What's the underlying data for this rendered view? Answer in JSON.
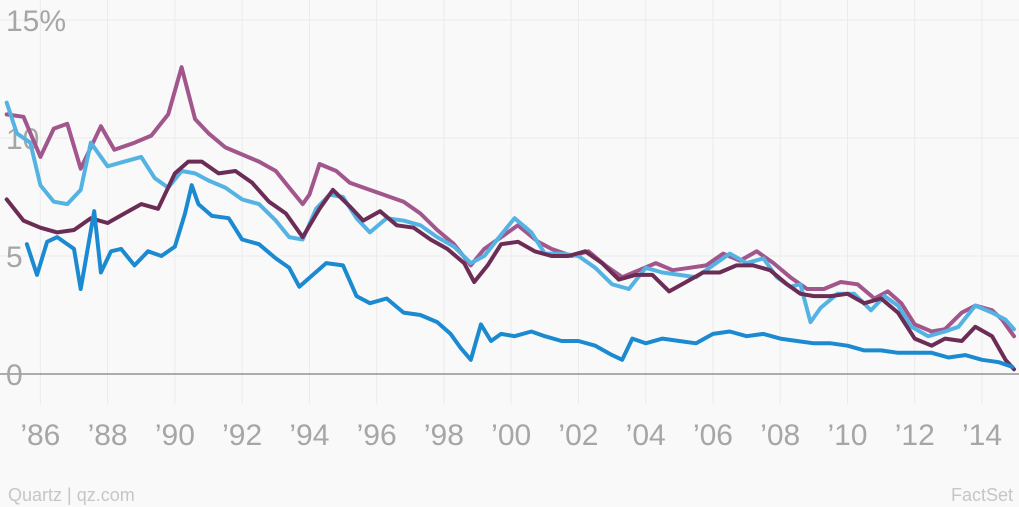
{
  "chart_data": {
    "type": "line",
    "title": "",
    "xlabel": "",
    "ylabel": "",
    "xlim": [
      1984.8,
      2015.1
    ],
    "ylim": [
      0,
      15
    ],
    "grid": true,
    "legend": "none",
    "x_ticks": [
      {
        "value": 1986,
        "label": "’86"
      },
      {
        "value": 1988,
        "label": "’88"
      },
      {
        "value": 1990,
        "label": "’90"
      },
      {
        "value": 1992,
        "label": "’92"
      },
      {
        "value": 1994,
        "label": "’94"
      },
      {
        "value": 1996,
        "label": "’96"
      },
      {
        "value": 1998,
        "label": "’98"
      },
      {
        "value": 2000,
        "label": "’00"
      },
      {
        "value": 2002,
        "label": "’02"
      },
      {
        "value": 2004,
        "label": "’04"
      },
      {
        "value": 2006,
        "label": "’06"
      },
      {
        "value": 2008,
        "label": "’08"
      },
      {
        "value": 2010,
        "label": "’10"
      },
      {
        "value": 2012,
        "label": "’12"
      },
      {
        "value": 2014,
        "label": "’14"
      }
    ],
    "y_ticks": [
      {
        "value": 0,
        "label": "0"
      },
      {
        "value": 5,
        "label": "5"
      },
      {
        "value": 10,
        "label": "10"
      },
      {
        "value": 15,
        "label": "15%"
      }
    ],
    "series": [
      {
        "color": "#a1568c",
        "points": [
          [
            1985.0,
            11.0
          ],
          [
            1985.5,
            10.9
          ],
          [
            1986.0,
            9.2
          ],
          [
            1986.4,
            10.4
          ],
          [
            1986.8,
            10.6
          ],
          [
            1987.2,
            8.7
          ],
          [
            1987.8,
            10.5
          ],
          [
            1988.2,
            9.5
          ],
          [
            1988.8,
            9.8
          ],
          [
            1989.3,
            10.1
          ],
          [
            1989.8,
            11.0
          ],
          [
            1990.2,
            13.0
          ],
          [
            1990.6,
            10.8
          ],
          [
            1991.0,
            10.2
          ],
          [
            1991.5,
            9.6
          ],
          [
            1992.0,
            9.3
          ],
          [
            1992.5,
            9.0
          ],
          [
            1993.0,
            8.6
          ],
          [
            1993.4,
            7.9
          ],
          [
            1993.8,
            7.2
          ],
          [
            1994.0,
            7.6
          ],
          [
            1994.3,
            8.9
          ],
          [
            1994.8,
            8.6
          ],
          [
            1995.2,
            8.1
          ],
          [
            1995.8,
            7.8
          ],
          [
            1996.2,
            7.6
          ],
          [
            1996.8,
            7.3
          ],
          [
            1997.3,
            6.8
          ],
          [
            1997.8,
            6.1
          ],
          [
            1998.3,
            5.5
          ],
          [
            1998.8,
            4.6
          ],
          [
            1999.2,
            5.3
          ],
          [
            1999.8,
            5.9
          ],
          [
            2000.2,
            6.3
          ],
          [
            2000.8,
            5.6
          ],
          [
            2001.2,
            5.3
          ],
          [
            2001.8,
            5.0
          ],
          [
            2002.3,
            5.2
          ],
          [
            2002.8,
            4.6
          ],
          [
            2003.3,
            4.1
          ],
          [
            2003.8,
            4.4
          ],
          [
            2004.3,
            4.7
          ],
          [
            2004.8,
            4.4
          ],
          [
            2005.3,
            4.5
          ],
          [
            2005.8,
            4.6
          ],
          [
            2006.3,
            5.1
          ],
          [
            2006.8,
            4.8
          ],
          [
            2007.3,
            5.2
          ],
          [
            2007.8,
            4.7
          ],
          [
            2008.3,
            4.1
          ],
          [
            2008.8,
            3.6
          ],
          [
            2009.3,
            3.6
          ],
          [
            2009.8,
            3.9
          ],
          [
            2010.3,
            3.8
          ],
          [
            2010.8,
            3.2
          ],
          [
            2011.2,
            3.5
          ],
          [
            2011.6,
            3.0
          ],
          [
            2012.0,
            2.1
          ],
          [
            2012.5,
            1.8
          ],
          [
            2012.9,
            1.9
          ],
          [
            2013.4,
            2.6
          ],
          [
            2013.8,
            2.9
          ],
          [
            2014.3,
            2.7
          ],
          [
            2014.6,
            2.3
          ],
          [
            2014.8,
            1.9
          ],
          [
            2014.95,
            1.6
          ]
        ]
      },
      {
        "color": "#55b3e3",
        "points": [
          [
            1985.0,
            11.5
          ],
          [
            1985.3,
            10.2
          ],
          [
            1985.7,
            9.8
          ],
          [
            1986.0,
            8.0
          ],
          [
            1986.4,
            7.3
          ],
          [
            1986.8,
            7.2
          ],
          [
            1987.2,
            7.8
          ],
          [
            1987.5,
            9.8
          ],
          [
            1988.0,
            8.8
          ],
          [
            1988.5,
            9.0
          ],
          [
            1989.0,
            9.2
          ],
          [
            1989.4,
            8.3
          ],
          [
            1989.8,
            7.9
          ],
          [
            1990.2,
            8.6
          ],
          [
            1990.6,
            8.5
          ],
          [
            1991.0,
            8.2
          ],
          [
            1991.5,
            7.9
          ],
          [
            1992.0,
            7.4
          ],
          [
            1992.5,
            7.2
          ],
          [
            1993.0,
            6.5
          ],
          [
            1993.4,
            5.8
          ],
          [
            1993.8,
            5.7
          ],
          [
            1994.2,
            7.0
          ],
          [
            1994.6,
            7.6
          ],
          [
            1995.0,
            7.5
          ],
          [
            1995.4,
            6.6
          ],
          [
            1995.8,
            6.0
          ],
          [
            1996.3,
            6.6
          ],
          [
            1996.8,
            6.5
          ],
          [
            1997.3,
            6.3
          ],
          [
            1997.8,
            5.8
          ],
          [
            1998.3,
            5.4
          ],
          [
            1998.8,
            4.7
          ],
          [
            1999.2,
            5.0
          ],
          [
            1999.7,
            5.9
          ],
          [
            2000.1,
            6.6
          ],
          [
            2000.6,
            6.0
          ],
          [
            2001.0,
            5.1
          ],
          [
            2001.5,
            5.1
          ],
          [
            2002.0,
            5.0
          ],
          [
            2002.5,
            4.5
          ],
          [
            2003.0,
            3.8
          ],
          [
            2003.5,
            3.6
          ],
          [
            2004.0,
            4.5
          ],
          [
            2004.5,
            4.3
          ],
          [
            2005.0,
            4.2
          ],
          [
            2005.5,
            4.1
          ],
          [
            2006.0,
            4.6
          ],
          [
            2006.5,
            5.1
          ],
          [
            2007.0,
            4.7
          ],
          [
            2007.5,
            4.9
          ],
          [
            2007.9,
            4.1
          ],
          [
            2008.3,
            3.7
          ],
          [
            2008.6,
            3.8
          ],
          [
            2008.9,
            2.2
          ],
          [
            2009.2,
            2.8
          ],
          [
            2009.7,
            3.4
          ],
          [
            2010.2,
            3.4
          ],
          [
            2010.7,
            2.7
          ],
          [
            2011.1,
            3.3
          ],
          [
            2011.5,
            2.9
          ],
          [
            2011.9,
            2.0
          ],
          [
            2012.4,
            1.6
          ],
          [
            2012.9,
            1.8
          ],
          [
            2013.3,
            2.0
          ],
          [
            2013.8,
            2.9
          ],
          [
            2014.3,
            2.6
          ],
          [
            2014.7,
            2.3
          ],
          [
            2014.95,
            1.9
          ]
        ]
      },
      {
        "color": "#6b2d55",
        "points": [
          [
            1985.0,
            7.4
          ],
          [
            1985.5,
            6.5
          ],
          [
            1986.0,
            6.2
          ],
          [
            1986.5,
            6.0
          ],
          [
            1987.0,
            6.1
          ],
          [
            1987.5,
            6.6
          ],
          [
            1988.0,
            6.4
          ],
          [
            1988.5,
            6.8
          ],
          [
            1989.0,
            7.2
          ],
          [
            1989.5,
            7.0
          ],
          [
            1990.0,
            8.5
          ],
          [
            1990.4,
            9.0
          ],
          [
            1990.8,
            9.0
          ],
          [
            1991.3,
            8.5
          ],
          [
            1991.8,
            8.6
          ],
          [
            1992.3,
            8.1
          ],
          [
            1992.8,
            7.3
          ],
          [
            1993.3,
            6.8
          ],
          [
            1993.8,
            5.8
          ],
          [
            1994.3,
            7.0
          ],
          [
            1994.7,
            7.8
          ],
          [
            1995.2,
            7.1
          ],
          [
            1995.6,
            6.5
          ],
          [
            1996.1,
            6.9
          ],
          [
            1996.6,
            6.3
          ],
          [
            1997.1,
            6.2
          ],
          [
            1997.6,
            5.7
          ],
          [
            1998.1,
            5.3
          ],
          [
            1998.6,
            4.7
          ],
          [
            1998.9,
            3.9
          ],
          [
            1999.3,
            4.6
          ],
          [
            1999.7,
            5.5
          ],
          [
            2000.2,
            5.6
          ],
          [
            2000.7,
            5.2
          ],
          [
            2001.2,
            5.0
          ],
          [
            2001.7,
            5.0
          ],
          [
            2002.2,
            5.2
          ],
          [
            2002.7,
            4.7
          ],
          [
            2003.2,
            4.0
          ],
          [
            2003.7,
            4.2
          ],
          [
            2004.2,
            4.2
          ],
          [
            2004.7,
            3.5
          ],
          [
            2005.2,
            3.9
          ],
          [
            2005.7,
            4.3
          ],
          [
            2006.2,
            4.3
          ],
          [
            2006.7,
            4.6
          ],
          [
            2007.2,
            4.6
          ],
          [
            2007.7,
            4.4
          ],
          [
            2008.2,
            3.8
          ],
          [
            2008.6,
            3.4
          ],
          [
            2009.0,
            3.3
          ],
          [
            2009.5,
            3.3
          ],
          [
            2010.0,
            3.4
          ],
          [
            2010.5,
            3.0
          ],
          [
            2011.0,
            3.2
          ],
          [
            2011.5,
            2.6
          ],
          [
            2012.0,
            1.5
          ],
          [
            2012.5,
            1.2
          ],
          [
            2012.9,
            1.5
          ],
          [
            2013.4,
            1.4
          ],
          [
            2013.8,
            2.0
          ],
          [
            2014.3,
            1.6
          ],
          [
            2014.7,
            0.6
          ],
          [
            2014.95,
            0.2
          ]
        ]
      },
      {
        "color": "#1b8ad1",
        "points": [
          [
            1985.6,
            5.5
          ],
          [
            1985.9,
            4.2
          ],
          [
            1986.2,
            5.6
          ],
          [
            1986.5,
            5.8
          ],
          [
            1987.0,
            5.3
          ],
          [
            1987.2,
            3.6
          ],
          [
            1987.6,
            6.9
          ],
          [
            1987.8,
            4.3
          ],
          [
            1988.1,
            5.2
          ],
          [
            1988.4,
            5.3
          ],
          [
            1988.8,
            4.6
          ],
          [
            1989.2,
            5.2
          ],
          [
            1989.6,
            5.0
          ],
          [
            1990.0,
            5.4
          ],
          [
            1990.3,
            6.8
          ],
          [
            1990.5,
            8.0
          ],
          [
            1990.7,
            7.2
          ],
          [
            1991.1,
            6.7
          ],
          [
            1991.6,
            6.6
          ],
          [
            1992.0,
            5.7
          ],
          [
            1992.5,
            5.5
          ],
          [
            1993.0,
            4.9
          ],
          [
            1993.4,
            4.5
          ],
          [
            1993.7,
            3.7
          ],
          [
            1994.1,
            4.2
          ],
          [
            1994.5,
            4.7
          ],
          [
            1995.0,
            4.6
          ],
          [
            1995.4,
            3.3
          ],
          [
            1995.8,
            3.0
          ],
          [
            1996.3,
            3.2
          ],
          [
            1996.8,
            2.6
          ],
          [
            1997.3,
            2.5
          ],
          [
            1997.8,
            2.2
          ],
          [
            1998.2,
            1.7
          ],
          [
            1998.5,
            1.1
          ],
          [
            1998.8,
            0.6
          ],
          [
            1999.1,
            2.1
          ],
          [
            1999.4,
            1.4
          ],
          [
            1999.7,
            1.7
          ],
          [
            2000.1,
            1.6
          ],
          [
            2000.6,
            1.8
          ],
          [
            2001.0,
            1.6
          ],
          [
            2001.5,
            1.4
          ],
          [
            2002.0,
            1.4
          ],
          [
            2002.5,
            1.2
          ],
          [
            2003.0,
            0.8
          ],
          [
            2003.3,
            0.6
          ],
          [
            2003.6,
            1.5
          ],
          [
            2004.0,
            1.3
          ],
          [
            2004.5,
            1.5
          ],
          [
            2005.0,
            1.4
          ],
          [
            2005.5,
            1.3
          ],
          [
            2006.0,
            1.7
          ],
          [
            2006.5,
            1.8
          ],
          [
            2007.0,
            1.6
          ],
          [
            2007.5,
            1.7
          ],
          [
            2008.0,
            1.5
          ],
          [
            2008.5,
            1.4
          ],
          [
            2009.0,
            1.3
          ],
          [
            2009.5,
            1.3
          ],
          [
            2010.0,
            1.2
          ],
          [
            2010.5,
            1.0
          ],
          [
            2011.0,
            1.0
          ],
          [
            2011.5,
            0.9
          ],
          [
            2012.0,
            0.9
          ],
          [
            2012.5,
            0.9
          ],
          [
            2013.0,
            0.7
          ],
          [
            2013.5,
            0.8
          ],
          [
            2014.0,
            0.6
          ],
          [
            2014.5,
            0.5
          ],
          [
            2014.9,
            0.3
          ]
        ]
      }
    ]
  },
  "footer": {
    "source_left": "Quartz | qz.com",
    "source_right": "FactSet"
  }
}
